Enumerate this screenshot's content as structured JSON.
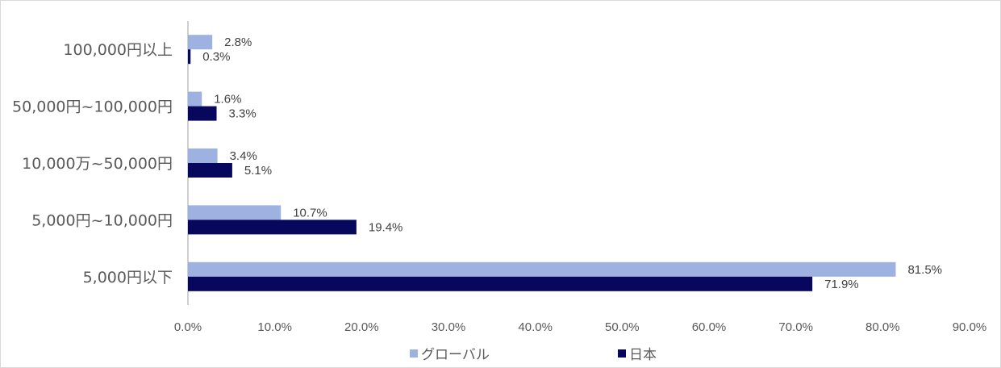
{
  "chart_data": {
    "type": "bar",
    "orientation": "horizontal",
    "categories": [
      "100,000円以上",
      "50,000円~100,000円",
      "10,000万~50,000円",
      "5,000円~10,000円",
      "5,000円以下"
    ],
    "series": [
      {
        "name": "グローバル",
        "color": "#9db2e0",
        "values": [
          2.8,
          1.6,
          3.4,
          10.7,
          81.5
        ],
        "labels": [
          "2.8%",
          "1.6%",
          "3.4%",
          "10.7%",
          "81.5%"
        ]
      },
      {
        "name": "日本",
        "color": "#07075e",
        "values": [
          0.3,
          3.3,
          5.1,
          19.4,
          71.9
        ],
        "labels": [
          "0.3%",
          "3.3%",
          "5.1%",
          "19.4%",
          "71.9%"
        ]
      }
    ],
    "x_ticks": [
      "0.0%",
      "10.0%",
      "20.0%",
      "30.0%",
      "40.0%",
      "50.0%",
      "60.0%",
      "70.0%",
      "80.0%",
      "90.0%"
    ],
    "xlim": [
      0,
      90
    ],
    "title": "",
    "xlabel": "",
    "ylabel": "",
    "grid": false,
    "legend_position": "bottom"
  },
  "colors": {
    "axis": "#bfbfbf",
    "text": "#595959"
  }
}
